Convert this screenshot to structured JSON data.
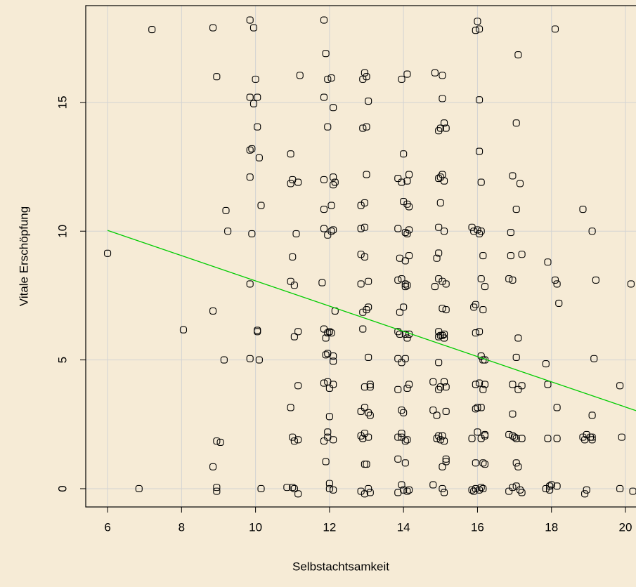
{
  "chart_data": {
    "type": "scatter",
    "x_label": "Selbstachtsamkeit",
    "y_label": "Vitale Erschöpfung",
    "xlim": [
      5.41,
      20.57
    ],
    "ylim": [
      -0.71,
      18.76
    ],
    "xticks": [
      6,
      8,
      10,
      12,
      14,
      16,
      18,
      20
    ],
    "yticks": [
      0,
      5,
      10,
      15
    ],
    "grid": true,
    "color": "#000000",
    "x": [
      6.0,
      6.85,
      7.2,
      8.05,
      8.85,
      8.95,
      9.2,
      9.25,
      8.85,
      9.15,
      8.95,
      9.05,
      8.85,
      8.95,
      8.95,
      9.85,
      9.95,
      10.0,
      9.85,
      10.05,
      9.95,
      10.05,
      9.85,
      9.9,
      10.1,
      9.85,
      10.15,
      9.9,
      9.85,
      10.05,
      10.05,
      9.85,
      10.1,
      10.15,
      11.2,
      10.95,
      10.95,
      11.0,
      11.15,
      11.1,
      11.0,
      10.95,
      11.05,
      11.05,
      11.15,
      11.15,
      10.95,
      11.0,
      11.05,
      11.15,
      10.85,
      11.0,
      11.05,
      11.15,
      11.85,
      11.9,
      11.95,
      12.05,
      11.85,
      12.1,
      11.95,
      11.85,
      12.1,
      12.15,
      12.1,
      12.05,
      11.85,
      11.85,
      11.95,
      12.05,
      12.1,
      11.8,
      12.15,
      11.85,
      11.95,
      12.0,
      12.05,
      11.9,
      11.9,
      11.95,
      12.1,
      12.1,
      11.85,
      11.95,
      12.0,
      12.1,
      12.0,
      11.85,
      11.95,
      11.95,
      12.1,
      11.9,
      12.0,
      12.0,
      12.1,
      12.95,
      12.9,
      13.0,
      13.05,
      12.9,
      13.0,
      13.0,
      12.85,
      12.95,
      12.85,
      12.95,
      12.85,
      12.95,
      12.85,
      13.05,
      13.05,
      13.0,
      12.9,
      12.9,
      13.05,
      12.95,
      13.1,
      13.1,
      12.85,
      12.95,
      13.05,
      13.1,
      12.85,
      12.95,
      13.05,
      12.9,
      12.95,
      13.0,
      12.85,
      12.95,
      13.05,
      13.1,
      13.95,
      14.1,
      14.0,
      13.85,
      13.95,
      14.1,
      14.15,
      14.0,
      14.1,
      14.15,
      13.85,
      14.05,
      14.15,
      14.1,
      13.9,
      14.05,
      14.15,
      13.85,
      13.95,
      14.05,
      14.1,
      14.05,
      14.0,
      13.9,
      13.85,
      13.9,
      14.05,
      14.1,
      14.15,
      13.85,
      13.95,
      14.05,
      13.85,
      14.1,
      14.15,
      13.95,
      14.0,
      13.95,
      13.85,
      13.95,
      14.05,
      14.1,
      13.85,
      14.05,
      13.95,
      13.85,
      14.0,
      14.1,
      14.15,
      14.85,
      15.05,
      15.05,
      14.95,
      15.1,
      15.0,
      15.15,
      14.95,
      15.05,
      15.0,
      15.1,
      15.0,
      14.95,
      15.1,
      14.95,
      14.9,
      14.85,
      15.05,
      14.95,
      15.15,
      15.05,
      15.15,
      14.95,
      14.95,
      15.05,
      15.1,
      15.1,
      15.0,
      14.95,
      14.8,
      15.0,
      15.1,
      14.95,
      15.15,
      14.8,
      14.9,
      15.15,
      14.95,
      14.9,
      15.05,
      15.1,
      15.0,
      15.15,
      15.15,
      15.05,
      14.8,
      15.05,
      15.1,
      16.0,
      15.95,
      16.05,
      16.05,
      16.05,
      16.1,
      15.85,
      15.9,
      16.0,
      16.05,
      16.1,
      16.15,
      16.1,
      16.2,
      15.9,
      15.95,
      16.15,
      15.95,
      16.05,
      16.1,
      16.15,
      16.2,
      15.95,
      16.05,
      16.15,
      16.2,
      15.95,
      16.0,
      16.1,
      15.85,
      16.0,
      16.1,
      16.2,
      16.2,
      15.95,
      16.15,
      16.2,
      15.85,
      15.95,
      16.05,
      16.1,
      15.9,
      16.15,
      17.1,
      17.05,
      16.95,
      17.15,
      17.05,
      16.9,
      16.9,
      17.2,
      16.85,
      16.95,
      17.1,
      17.05,
      16.95,
      17.1,
      17.2,
      16.95,
      16.85,
      16.95,
      17.05,
      17.0,
      17.2,
      17.05,
      17.1,
      16.85,
      16.95,
      17.05,
      17.15,
      17.2,
      18.1,
      17.9,
      18.1,
      18.15,
      18.2,
      17.85,
      17.9,
      18.15,
      17.9,
      18.15,
      17.85,
      17.95,
      18.0,
      17.95,
      18.15,
      18.85,
      19.1,
      19.2,
      19.15,
      19.1,
      18.85,
      18.9,
      18.95,
      19.05,
      19.1,
      19.1,
      18.9,
      18.95,
      19.85,
      19.9,
      19.85,
      20.15,
      20.2
    ],
    "y": [
      9.14,
      0,
      17.83,
      6.17,
      17.9,
      16.0,
      10.8,
      10.0,
      6.9,
      5.0,
      1.85,
      1.8,
      0.85,
      0.05,
      -0.1,
      18.2,
      17.9,
      15.9,
      15.2,
      15.2,
      14.95,
      14.05,
      13.15,
      13.2,
      12.85,
      12.1,
      11.0,
      9.9,
      7.95,
      6.1,
      6.15,
      5.05,
      5.0,
      0.0,
      16.05,
      13.0,
      11.85,
      12.0,
      11.9,
      9.9,
      9.0,
      8.05,
      7.9,
      5.9,
      6.1,
      4.0,
      3.15,
      2.0,
      1.85,
      1.9,
      0.05,
      0.05,
      0.0,
      -0.2,
      18.2,
      16.9,
      15.9,
      15.95,
      15.2,
      14.8,
      14.05,
      12.0,
      12.1,
      11.9,
      11.8,
      11.0,
      10.85,
      10.1,
      9.85,
      10.0,
      10.05,
      8.0,
      6.9,
      6.2,
      6.05,
      6.1,
      6.05,
      5.85,
      5.2,
      5.25,
      5.15,
      4.95,
      4.1,
      4.15,
      3.9,
      4.05,
      2.8,
      1.85,
      2.2,
      2.0,
      1.9,
      1.05,
      0.2,
      0.0,
      -0.05,
      16.15,
      15.9,
      16.0,
      15.05,
      14.0,
      14.05,
      12.2,
      11.0,
      11.1,
      10.1,
      10.15,
      9.1,
      9.0,
      7.95,
      8.05,
      7.05,
      6.95,
      6.85,
      6.2,
      5.1,
      3.95,
      4.05,
      3.95,
      3.0,
      3.15,
      2.95,
      2.85,
      2.05,
      2.15,
      2.0,
      1.95,
      0.95,
      0.95,
      -0.1,
      -0.2,
      0.0,
      -0.15,
      15.9,
      16.1,
      13.0,
      12.05,
      11.9,
      11.95,
      12.2,
      11.15,
      11.05,
      10.95,
      10.1,
      9.95,
      10.05,
      9.9,
      8.95,
      8.85,
      9.05,
      8.1,
      8.15,
      7.85,
      7.9,
      7.95,
      7.05,
      6.85,
      6.1,
      6.0,
      6.0,
      5.85,
      6.0,
      5.05,
      4.9,
      5.05,
      3.85,
      3.9,
      4.05,
      3.05,
      2.95,
      2.15,
      2.0,
      2.0,
      1.85,
      1.9,
      1.15,
      1.0,
      0.15,
      -0.15,
      -0.05,
      -0.1,
      -0.05,
      16.15,
      16.05,
      15.15,
      13.9,
      14.2,
      14.0,
      14.0,
      12.05,
      12.2,
      12.1,
      11.95,
      11.1,
      10.15,
      10.0,
      9.15,
      8.95,
      7.85,
      8.05,
      8.15,
      7.95,
      7.0,
      6.95,
      6.1,
      5.9,
      5.95,
      6.0,
      5.85,
      5.95,
      4.9,
      4.15,
      3.95,
      4.15,
      3.85,
      3.95,
      3.05,
      2.85,
      3.0,
      2.05,
      1.95,
      2.05,
      1.85,
      1.9,
      1.15,
      1.05,
      0.85,
      0.15,
      0.0,
      -0.15,
      18.15,
      17.8,
      17.85,
      15.1,
      13.1,
      11.9,
      10.15,
      10.0,
      10.05,
      9.9,
      10.0,
      9.05,
      8.15,
      7.85,
      7.05,
      7.15,
      6.95,
      6.05,
      6.1,
      5.15,
      5.0,
      5.0,
      4.05,
      4.1,
      3.85,
      4.05,
      3.1,
      3.15,
      3.15,
      1.95,
      2.2,
      1.95,
      2.05,
      2.1,
      1.0,
      1.0,
      0.95,
      -0.05,
      0.0,
      -0.05,
      0.05,
      -0.1,
      0.0,
      16.85,
      14.2,
      12.15,
      11.85,
      10.85,
      9.95,
      9.05,
      9.1,
      8.15,
      8.1,
      5.85,
      5.1,
      4.05,
      3.85,
      4.0,
      2.9,
      2.1,
      2.05,
      1.95,
      2.0,
      1.95,
      1.0,
      0.85,
      -0.1,
      0.05,
      0.1,
      -0.05,
      -0.15,
      17.85,
      8.8,
      8.1,
      7.95,
      7.2,
      4.85,
      4.05,
      3.15,
      1.95,
      1.95,
      0.0,
      0.1,
      0.15,
      -0.05,
      0.1,
      10.85,
      10.0,
      8.1,
      5.05,
      2.85,
      2.0,
      1.9,
      2.1,
      2.0,
      1.9,
      2.0,
      -0.2,
      -0.05,
      4.0,
      2.0,
      0.0,
      7.95,
      -0.1
    ],
    "fit_line": {
      "color": "#00cc00",
      "x": [
        6,
        20.57
      ],
      "y": [
        10.03,
        2.89
      ]
    }
  }
}
